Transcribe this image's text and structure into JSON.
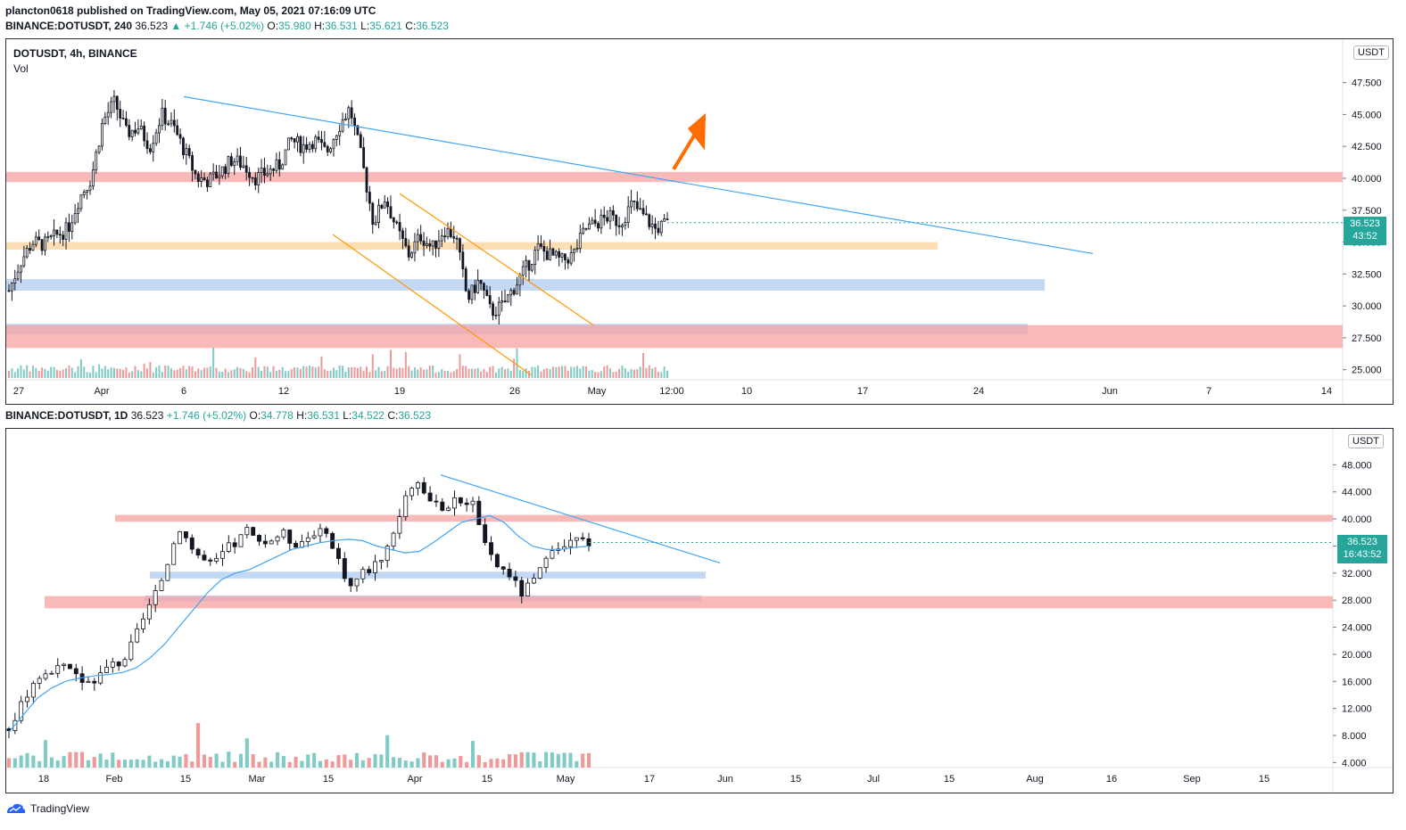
{
  "header": {
    "publisher_line": "plancton0618 published on TradingView.com, May 05, 2021 07:16:09 UTC"
  },
  "top_chart": {
    "ohlc_line": {
      "symbol": "BINANCE:DOTUSDT, 240",
      "last": "36.523",
      "change": "▲ +1.746 (+5.02%)",
      "o_label": "O:",
      "o": "35.980",
      "h_label": "H:",
      "h": "36.531",
      "l_label": "L:",
      "l": "35.621",
      "c_label": "C:",
      "c": "36.523"
    },
    "legend_title": "DOTUSDT, 4h, BINANCE",
    "legend_vol": "Vol",
    "currency_badge": "USDT",
    "price_badge": "36.523",
    "countdown_badge": "43:52"
  },
  "bottom_chart": {
    "ohlc_line": {
      "symbol": "BINANCE:DOTUSDT, 1D",
      "last": "36.523",
      "change": "+1.746 (+5.02%)",
      "o_label": "O:",
      "o": "34.778",
      "h_label": "H:",
      "h": "36.531",
      "l_label": "L:",
      "l": "34.522",
      "c_label": "C:",
      "c": "36.523"
    },
    "currency_badge": "USDT",
    "price_badge": "36.523",
    "countdown_badge": "16:43:52"
  },
  "footer": {
    "brand": "TradingView"
  },
  "colors": {
    "up": "#26a69a",
    "down": "#ef5350",
    "trendline": "#42a5f5",
    "red_zone": "#f7a1a1",
    "blue_zone": "#aecbf2",
    "orange_zone": "#fbd39b",
    "channel": "#ff9800",
    "arrow": "#ff6d00"
  },
  "chart_data": [
    {
      "type": "candlestick",
      "title": "DOTUSDT, 4h, BINANCE",
      "xticks": [
        "27",
        "Apr",
        "6",
        "12",
        "19",
        "26",
        "May",
        "12:00",
        "10",
        "17",
        "24",
        "Jun",
        "7",
        "14"
      ],
      "yticks": [
        "25.000",
        "27.500",
        "30.000",
        "32.500",
        "35.000",
        "37.500",
        "40.000",
        "42.500",
        "45.000",
        "47.500"
      ],
      "ylim": [
        24.0,
        49.5
      ],
      "last_price": 36.523,
      "price_path": [
        31.2,
        33.5,
        35.0,
        34.8,
        35.5,
        36.0,
        38.5,
        40.0,
        44.5,
        46.0,
        43.5,
        44.0,
        42.5,
        45.0,
        44.0,
        42.0,
        40.0,
        39.8,
        40.5,
        41.5,
        41.0,
        40.0,
        40.5,
        41.0,
        43.0,
        42.5,
        43.0,
        42.0,
        44.0,
        45.5,
        41.5,
        36.5,
        38.5,
        36.0,
        34.0,
        35.5,
        34.5,
        36.0,
        35.5,
        30.5,
        32.0,
        29.5,
        30.0,
        31.5,
        33.0,
        34.5,
        34.0,
        33.5,
        34.0,
        36.0,
        36.5,
        37.0,
        36.5,
        38.0,
        37.0,
        36.0,
        36.5
      ],
      "zones": [
        {
          "kind": "red",
          "from": 39.7,
          "to": 40.5
        },
        {
          "kind": "orange",
          "from": 34.4,
          "to": 35.0
        },
        {
          "kind": "blue",
          "from": 31.2,
          "to": 32.1
        },
        {
          "kind": "blue",
          "from": 27.8,
          "to": 28.6
        },
        {
          "kind": "red",
          "from": 26.7,
          "to": 28.5
        }
      ]
    },
    {
      "type": "candlestick",
      "title": "BINANCE:DOTUSDT, 1D",
      "xticks": [
        "18",
        "Feb",
        "15",
        "Mar",
        "15",
        "Apr",
        "15",
        "May",
        "17",
        "Jun",
        "15",
        "Jul",
        "15",
        "Aug",
        "16",
        "Sep",
        "15"
      ],
      "yticks": [
        "4.000",
        "8.000",
        "12.000",
        "16.000",
        "20.000",
        "24.000",
        "28.000",
        "32.000",
        "36.000",
        "40.000",
        "44.000",
        "48.000"
      ],
      "ylim": [
        3.0,
        52.0
      ],
      "last_price": 36.523,
      "price_path": [
        9.0,
        12.0,
        16.0,
        17.0,
        17.5,
        18.0,
        16.5,
        16.0,
        17.0,
        18.5,
        19.0,
        22.0,
        26.0,
        29.0,
        34.0,
        39.0,
        36.0,
        34.0,
        33.0,
        35.5,
        36.5,
        38.5,
        36.0,
        37.0,
        38.0,
        36.5,
        37.0,
        38.5,
        37.0,
        34.0,
        30.0,
        32.0,
        33.0,
        35.0,
        39.0,
        44.0,
        46.0,
        42.0,
        41.5,
        42.5,
        43.0,
        42.0,
        35.0,
        33.0,
        32.0,
        29.0,
        30.5,
        33.0,
        35.0,
        36.0,
        37.0,
        36.5
      ],
      "ma_path": [
        8.5,
        11.0,
        13.5,
        15.0,
        16.0,
        16.5,
        16.8,
        17.0,
        17.3,
        18.0,
        19.5,
        21.5,
        24.0,
        26.5,
        29.0,
        31.0,
        32.0,
        32.5,
        33.5,
        34.5,
        35.5,
        36.0,
        36.5,
        36.8,
        37.0,
        36.8,
        36.0,
        35.5,
        35.0,
        35.2,
        36.5,
        38.0,
        39.5,
        40.0,
        40.5,
        39.5,
        37.5,
        36.0,
        35.5,
        35.5,
        35.8,
        36.0
      ],
      "zones": [
        {
          "kind": "red",
          "from": 39.6,
          "to": 40.6
        },
        {
          "kind": "blue",
          "from": 31.2,
          "to": 32.2
        },
        {
          "kind": "blue",
          "from": 27.8,
          "to": 28.7
        },
        {
          "kind": "red",
          "from": 26.8,
          "to": 28.6
        }
      ]
    }
  ]
}
